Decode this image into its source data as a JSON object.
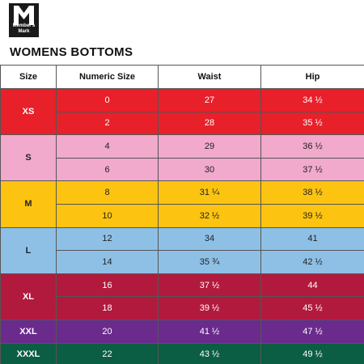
{
  "brand": {
    "name": "Member's Mark"
  },
  "title": "WOMENS BOTTOMS",
  "headers": [
    "Size",
    "Numeric Size",
    "Waist",
    "Hip"
  ],
  "groups": [
    {
      "size": "XS",
      "bg": "#e8202a",
      "color": "#ffffff",
      "rows": [
        [
          "0",
          "27",
          "34 ½"
        ],
        [
          "2",
          "28",
          "35 ½"
        ]
      ]
    },
    {
      "size": "S",
      "bg": "#f1a9cc",
      "color": "#222222",
      "rows": [
        [
          "4",
          "29",
          "36 ½"
        ],
        [
          "6",
          "30",
          "37 ½"
        ]
      ]
    },
    {
      "size": "M",
      "bg": "#fcc410",
      "color": "#222222",
      "rows": [
        [
          "8",
          "31 ¼",
          "38 ½"
        ],
        [
          "10",
          "32 ½",
          "39 ½"
        ]
      ]
    },
    {
      "size": "L",
      "bg": "#8ec0e6",
      "color": "#222222",
      "rows": [
        [
          "12",
          "34",
          "41"
        ],
        [
          "14",
          "35 ¾",
          "42 ½"
        ]
      ]
    },
    {
      "size": "XL",
      "bg": "#b21a3d",
      "color": "#ffffff",
      "rows": [
        [
          "16",
          "37 ½",
          "44"
        ],
        [
          "18",
          "39 ½",
          "45 ½"
        ]
      ]
    },
    {
      "size": "XXL",
      "bg": "#6a2b8d",
      "color": "#ffffff",
      "rows": [
        [
          "20",
          "41 ½",
          "47 ½"
        ]
      ]
    },
    {
      "size": "XXXL",
      "bg": "#0b5e44",
      "color": "#ffffff",
      "rows": [
        [
          "22",
          "43 ½",
          "49 ½"
        ]
      ]
    }
  ]
}
